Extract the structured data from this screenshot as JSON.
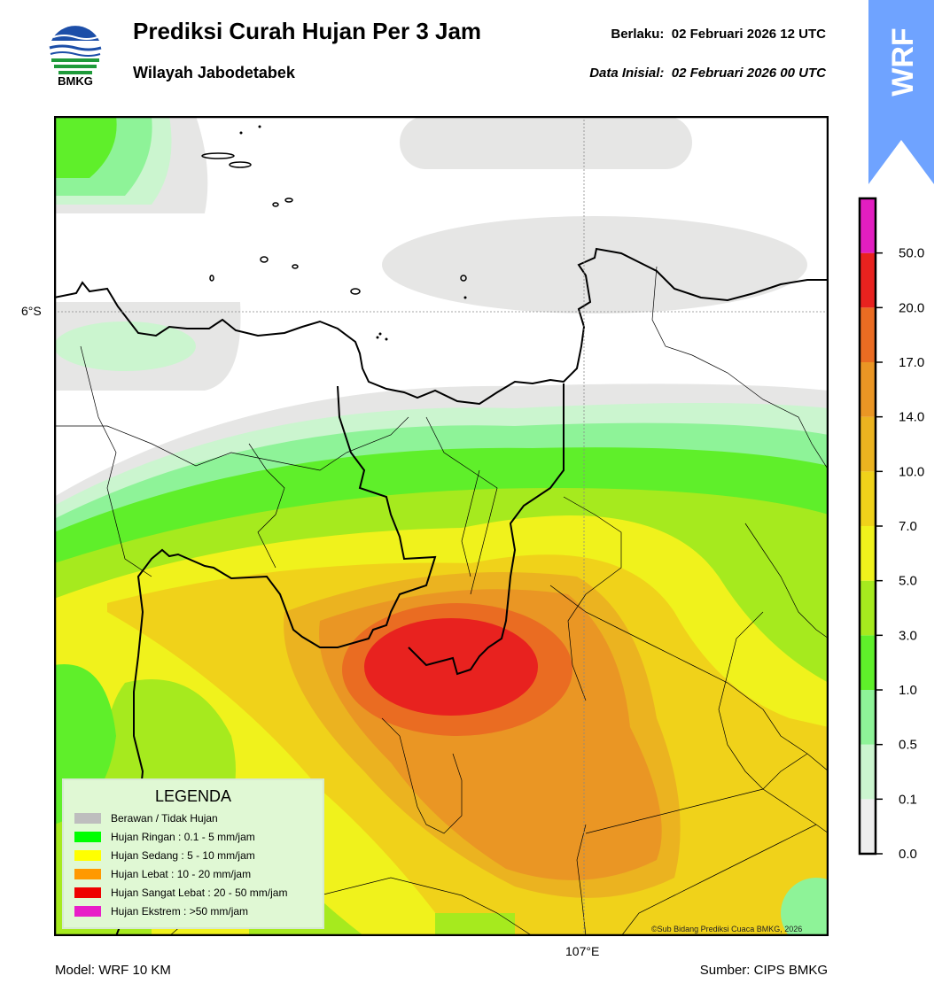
{
  "header": {
    "title": "Prediksi Curah Hujan Per 3 Jam",
    "subtitle": "Wilayah Jabodetabek",
    "valid_label": "Berlaku:",
    "valid_time": "02 Februari 2026 12 UTC",
    "init_label": "Data Inisial:",
    "init_time": "02 Februari 2026 00 UTC"
  },
  "logo": {
    "text": "BMKG",
    "icon": "bmkg-logo"
  },
  "badge": {
    "text": "WRF",
    "color": "#6fa3ff"
  },
  "axes": {
    "lat_label": "6°S",
    "lon_label": "107°E"
  },
  "footer": {
    "model": "Model: WRF 10 KM",
    "source": "Sumber: CIPS BMKG",
    "copyright": "©Sub Bidang Prediksi Cuaca BMKG, 2026"
  },
  "legend": {
    "title": "LEGENDA",
    "items": [
      {
        "label": "Berawan / Tidak Hujan",
        "color": "#bebebe"
      },
      {
        "label": "Hujan Ringan : 0.1 - 5 mm/jam",
        "color": "#00ff00"
      },
      {
        "label": "Hujan Sedang : 5 - 10 mm/jam",
        "color": "#ffff00"
      },
      {
        "label": "Hujan Lebat : 10 - 20 mm/jam",
        "color": "#ff9900"
      },
      {
        "label": "Hujan Sangat Lebat : 20 - 50 mm/jam",
        "color": "#ee0000"
      },
      {
        "label": "Hujan Ekstrem : >50 mm/jam",
        "color": "#e81ec8"
      }
    ]
  },
  "colorbar": {
    "ticks": [
      "0.0",
      "0.1",
      "0.5",
      "1.0",
      "3.0",
      "5.0",
      "7.0",
      "10.0",
      "14.0",
      "17.0",
      "20.0",
      "50.0"
    ],
    "colors": [
      "#eeeeee",
      "#cbf5cf",
      "#8ef398",
      "#5fef2a",
      "#a6ea1e",
      "#f0f21c",
      "#f0d21a",
      "#ebb320",
      "#ea9624",
      "#ea6c22",
      "#e8221f",
      "#e21ec0"
    ]
  }
}
